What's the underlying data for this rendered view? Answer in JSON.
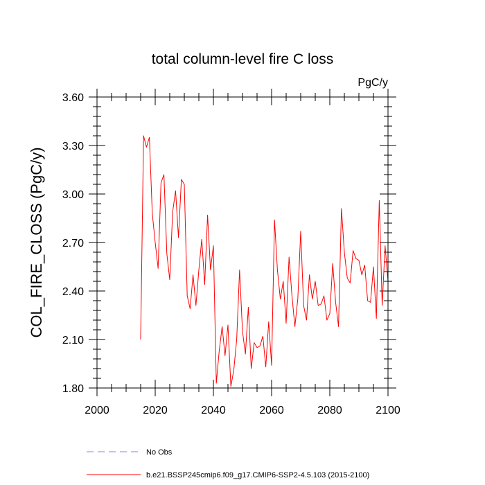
{
  "chart_data": {
    "type": "line",
    "title": "total column-level fire C loss",
    "units": "PgC/y",
    "xlabel": "",
    "ylabel": "COL_FIRE_CLOSS  (PgC/y)",
    "xlim": [
      2000,
      2100
    ],
    "ylim": [
      1.8,
      3.6
    ],
    "x_ticks": [
      2000,
      2020,
      2040,
      2060,
      2080,
      2100
    ],
    "y_ticks": [
      1.8,
      2.1,
      2.4,
      2.7,
      3.0,
      3.3,
      3.6
    ],
    "x_tick_labels": [
      "2000",
      "2020",
      "2040",
      "2060",
      "2080",
      "2100"
    ],
    "y_tick_labels": [
      "1.80",
      "2.10",
      "2.40",
      "2.70",
      "3.00",
      "3.30",
      "3.60"
    ],
    "legend": [
      {
        "name": "No Obs",
        "style": "dashed",
        "color": "#8080ff"
      },
      {
        "name": "b.e21.BSSP245cmip6.f09_g17.CMIP6-SSP2-4.5.103 (2015-2100)",
        "style": "solid",
        "color": "#ff0000"
      }
    ],
    "series": [
      {
        "name": "b.e21.BSSP245cmip6.f09_g17.CMIP6-SSP2-4.5.103 (2015-2100)",
        "color": "#ff0000",
        "x_start": 2015,
        "x_step": 1,
        "values": [
          2.1,
          3.36,
          3.29,
          3.35,
          2.88,
          2.7,
          2.54,
          3.07,
          3.12,
          2.63,
          2.47,
          2.89,
          3.02,
          2.73,
          3.09,
          3.06,
          2.37,
          2.29,
          2.5,
          2.31,
          2.53,
          2.72,
          2.44,
          2.87,
          2.53,
          2.68,
          1.83,
          2.03,
          2.18,
          2.0,
          2.19,
          1.81,
          1.91,
          2.1,
          2.53,
          2.15,
          2.01,
          2.3,
          1.92,
          2.08,
          2.05,
          2.06,
          2.12,
          1.93,
          2.21,
          1.94,
          2.84,
          2.53,
          2.35,
          2.46,
          2.2,
          2.61,
          2.37,
          2.18,
          2.35,
          2.77,
          2.31,
          2.22,
          2.5,
          2.35,
          2.46,
          2.31,
          2.32,
          2.37,
          2.22,
          2.26,
          2.57,
          2.33,
          2.18,
          2.91,
          2.64,
          2.48,
          2.45,
          2.65,
          2.6,
          2.59,
          2.5,
          2.56,
          2.34,
          2.33,
          2.55,
          2.23,
          2.96,
          2.31,
          2.68,
          2.46
        ]
      }
    ]
  }
}
